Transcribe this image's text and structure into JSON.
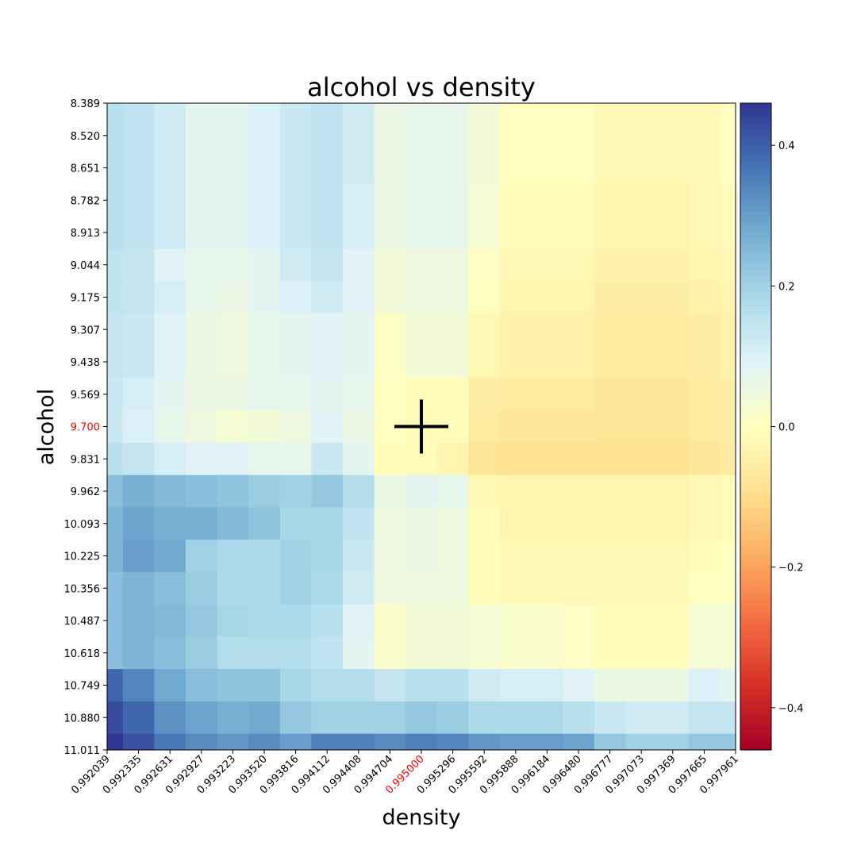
{
  "chart_data": {
    "type": "heatmap",
    "title": "alcohol vs density",
    "xlabel": "density",
    "ylabel": "alcohol",
    "x_ticks": [
      "0.992039",
      "0.992335",
      "0.992631",
      "0.992927",
      "0.993223",
      "0.993520",
      "0.993816",
      "0.994112",
      "0.994408",
      "0.994704",
      "0.995000",
      "0.995296",
      "0.995592",
      "0.995888",
      "0.996184",
      "0.996480",
      "0.996777",
      "0.997073",
      "0.997369",
      "0.997665",
      "0.997961"
    ],
    "y_ticks": [
      "8.389",
      "8.520",
      "8.651",
      "8.782",
      "8.913",
      "9.044",
      "9.175",
      "9.307",
      "9.438",
      "9.569",
      "9.700",
      "9.831",
      "9.962",
      "10.093",
      "10.225",
      "10.356",
      "10.487",
      "10.618",
      "10.749",
      "10.880",
      "11.011"
    ],
    "highlight_x": "0.995000",
    "highlight_y": "9.700",
    "highlight_color": "#ff0000",
    "marker": {
      "x": 0.995,
      "y": 9.7,
      "type": "plus",
      "color": "#000000"
    },
    "colorbar": {
      "colormap": "RdYlBu",
      "vmin": -0.46,
      "vmax": 0.46,
      "ticks": [
        0.4,
        0.2,
        0.0,
        -0.2,
        -0.4
      ],
      "tick_labels": [
        "0.4",
        "0.2",
        "0.0",
        "−0.2",
        "−0.4"
      ]
    },
    "values": [
      [
        0.16,
        0.15,
        0.12,
        0.08,
        0.08,
        0.1,
        0.13,
        0.15,
        0.12,
        0.06,
        0.07,
        0.07,
        0.04,
        0.0,
        0.0,
        0.0,
        -0.02,
        -0.02,
        -0.02,
        -0.02,
        0.0
      ],
      [
        0.16,
        0.15,
        0.12,
        0.08,
        0.08,
        0.1,
        0.13,
        0.15,
        0.12,
        0.06,
        0.07,
        0.07,
        0.04,
        0.0,
        0.0,
        0.0,
        -0.02,
        -0.02,
        -0.02,
        -0.02,
        0.0
      ],
      [
        0.16,
        0.15,
        0.12,
        0.08,
        0.08,
        0.1,
        0.13,
        0.15,
        0.12,
        0.06,
        0.07,
        0.07,
        0.04,
        0.0,
        0.0,
        0.0,
        -0.02,
        -0.02,
        -0.02,
        -0.02,
        0.0
      ],
      [
        0.16,
        0.15,
        0.12,
        0.08,
        0.08,
        0.1,
        0.13,
        0.15,
        0.11,
        0.06,
        0.07,
        0.07,
        0.03,
        -0.01,
        -0.01,
        -0.01,
        -0.03,
        -0.03,
        -0.03,
        -0.02,
        -0.01
      ],
      [
        0.16,
        0.15,
        0.12,
        0.08,
        0.08,
        0.1,
        0.13,
        0.15,
        0.11,
        0.06,
        0.07,
        0.07,
        0.03,
        -0.01,
        -0.01,
        -0.01,
        -0.03,
        -0.03,
        -0.03,
        -0.02,
        -0.01
      ],
      [
        0.15,
        0.14,
        0.09,
        0.07,
        0.07,
        0.08,
        0.12,
        0.14,
        0.09,
        0.04,
        0.05,
        0.05,
        0.01,
        -0.02,
        -0.02,
        -0.02,
        -0.04,
        -0.04,
        -0.04,
        -0.03,
        -0.02
      ],
      [
        0.15,
        0.14,
        0.11,
        0.07,
        0.06,
        0.08,
        0.1,
        0.12,
        0.09,
        0.04,
        0.05,
        0.05,
        0.0,
        -0.03,
        -0.03,
        -0.03,
        -0.05,
        -0.05,
        -0.05,
        -0.04,
        -0.03
      ],
      [
        0.14,
        0.13,
        0.09,
        0.06,
        0.05,
        0.07,
        0.08,
        0.09,
        0.08,
        0.01,
        0.04,
        0.04,
        -0.02,
        -0.04,
        -0.04,
        -0.04,
        -0.06,
        -0.06,
        -0.06,
        -0.05,
        -0.04
      ],
      [
        0.14,
        0.13,
        0.09,
        0.06,
        0.05,
        0.07,
        0.08,
        0.09,
        0.08,
        0.01,
        0.04,
        0.04,
        -0.02,
        -0.04,
        -0.04,
        -0.04,
        -0.06,
        -0.06,
        -0.06,
        -0.05,
        -0.04
      ],
      [
        0.13,
        0.11,
        0.08,
        0.06,
        0.06,
        0.07,
        0.07,
        0.08,
        0.07,
        0.0,
        -0.01,
        -0.01,
        -0.05,
        -0.06,
        -0.06,
        -0.06,
        -0.07,
        -0.07,
        -0.07,
        -0.06,
        -0.05
      ],
      [
        0.13,
        0.1,
        0.07,
        0.05,
        0.03,
        0.04,
        0.05,
        0.09,
        0.06,
        0.0,
        -0.01,
        -0.01,
        -0.06,
        -0.07,
        -0.07,
        -0.07,
        -0.08,
        -0.08,
        -0.08,
        -0.06,
        -0.05
      ],
      [
        0.16,
        0.14,
        0.11,
        0.09,
        0.09,
        0.07,
        0.07,
        0.13,
        0.08,
        -0.01,
        -0.01,
        -0.03,
        -0.08,
        -0.09,
        -0.09,
        -0.09,
        -0.09,
        -0.09,
        -0.09,
        -0.07,
        -0.06
      ],
      [
        0.24,
        0.27,
        0.25,
        0.24,
        0.23,
        0.21,
        0.2,
        0.22,
        0.17,
        0.06,
        0.08,
        0.07,
        -0.02,
        -0.03,
        -0.03,
        -0.03,
        -0.03,
        -0.03,
        -0.03,
        -0.02,
        -0.01
      ],
      [
        0.26,
        0.29,
        0.27,
        0.27,
        0.25,
        0.23,
        0.19,
        0.19,
        0.15,
        0.05,
        0.06,
        0.05,
        -0.01,
        -0.03,
        -0.03,
        -0.03,
        -0.03,
        -0.03,
        -0.03,
        -0.02,
        -0.01
      ],
      [
        0.26,
        0.3,
        0.28,
        0.2,
        0.18,
        0.18,
        0.2,
        0.19,
        0.13,
        0.05,
        0.06,
        0.05,
        -0.01,
        -0.02,
        -0.02,
        -0.02,
        -0.02,
        -0.02,
        -0.02,
        -0.01,
        0.0
      ],
      [
        0.24,
        0.26,
        0.24,
        0.21,
        0.18,
        0.18,
        0.2,
        0.18,
        0.12,
        0.05,
        0.05,
        0.05,
        -0.01,
        -0.02,
        -0.02,
        -0.02,
        -0.02,
        -0.02,
        -0.02,
        0.0,
        0.0
      ],
      [
        0.24,
        0.26,
        0.25,
        0.22,
        0.19,
        0.18,
        0.18,
        0.16,
        0.09,
        0.02,
        0.04,
        0.04,
        0.03,
        0.02,
        0.02,
        0.01,
        -0.01,
        -0.01,
        -0.01,
        0.03,
        0.03
      ],
      [
        0.24,
        0.26,
        0.24,
        0.21,
        0.17,
        0.17,
        0.17,
        0.15,
        0.08,
        0.02,
        0.04,
        0.04,
        0.03,
        0.02,
        0.02,
        0.01,
        -0.01,
        -0.01,
        -0.01,
        0.03,
        0.03
      ],
      [
        0.39,
        0.34,
        0.28,
        0.24,
        0.23,
        0.23,
        0.19,
        0.17,
        0.17,
        0.14,
        0.16,
        0.16,
        0.12,
        0.11,
        0.11,
        0.09,
        0.06,
        0.06,
        0.06,
        0.1,
        0.08
      ],
      [
        0.43,
        0.39,
        0.32,
        0.29,
        0.27,
        0.28,
        0.22,
        0.2,
        0.2,
        0.2,
        0.22,
        0.21,
        0.18,
        0.18,
        0.18,
        0.16,
        0.13,
        0.12,
        0.12,
        0.14,
        0.14
      ],
      [
        0.46,
        0.42,
        0.36,
        0.33,
        0.31,
        0.33,
        0.3,
        0.35,
        0.35,
        0.33,
        0.35,
        0.34,
        0.31,
        0.3,
        0.3,
        0.29,
        0.22,
        0.2,
        0.2,
        0.22,
        0.22
      ]
    ]
  }
}
